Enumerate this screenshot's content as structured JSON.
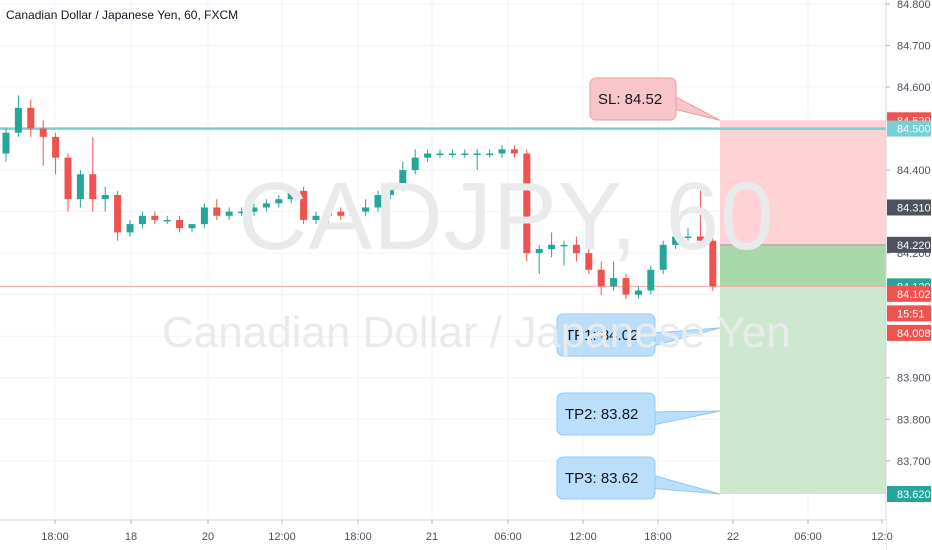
{
  "header": {
    "title": "Canadian Dollar / Japanese Yen, 60, FXCM"
  },
  "watermark": {
    "symbol": "CADJPY, 60",
    "description": "Canadian Dollar / Japanese Yen"
  },
  "colors": {
    "up": "#26a69a",
    "down": "#ef5350",
    "sl_fill": "#ffcdd2",
    "tp_fill": "#c8e6c9",
    "tp_strong": "#a5d6a7",
    "level_line": "#79cfd3",
    "current_line": "#f4a6a3"
  },
  "axis": {
    "price_labels": [
      "84.800",
      "84.700",
      "84.600",
      "84.400",
      "84.200",
      "83.900",
      "83.800",
      "83.700"
    ],
    "time_labels": [
      "18:00",
      "18",
      "20",
      "12:00",
      "18:00",
      "21",
      "06:00",
      "12:00",
      "18:00",
      "22",
      "06:00",
      "12:0"
    ]
  },
  "price_tags": [
    {
      "label": "84.520",
      "price": 84.52,
      "color": "#ef5350"
    },
    {
      "label": "84.500",
      "price": 84.5,
      "color": "#79cfd3",
      "text_color": "#131722"
    },
    {
      "label": "84.310",
      "price": 84.31,
      "color": "#4c525e"
    },
    {
      "label": "84.220",
      "price": 84.22,
      "color": "#4c525e"
    },
    {
      "label": "84.120",
      "price": 84.12,
      "color": "#26a69a"
    },
    {
      "label": "84.102",
      "price": 84.102,
      "color": "#ef5350"
    },
    {
      "label": "15:51",
      "price": 84.055,
      "color": "#ef5350"
    },
    {
      "label": "84.008",
      "price": 84.008,
      "color": "#ef5350"
    },
    {
      "label": "83.620",
      "price": 83.62,
      "color": "#26a69a"
    }
  ],
  "callouts": [
    {
      "text": "SL: 84.52",
      "type": "sl",
      "price": 84.52
    },
    {
      "text": "TP1: 84.02",
      "type": "tp",
      "price": 84.02
    },
    {
      "text": "TP2: 83.82",
      "type": "tp",
      "price": 83.82
    },
    {
      "text": "TP3: 83.62",
      "type": "tp",
      "price": 83.62
    }
  ],
  "chart_data": {
    "type": "candlestick",
    "symbol": "CADJPY",
    "interval": "60",
    "ylim": [
      83.57,
      84.82
    ],
    "levels": {
      "entry": 84.22,
      "stop_loss": 84.52,
      "take_profit_1": 84.02,
      "take_profit_2": 83.82,
      "take_profit_3": 83.62,
      "current": 84.12,
      "horizontal_line": 84.5
    },
    "candles": [
      {
        "o": 84.44,
        "h": 84.5,
        "l": 84.42,
        "c": 84.49
      },
      {
        "o": 84.49,
        "h": 84.58,
        "l": 84.48,
        "c": 84.55
      },
      {
        "o": 84.55,
        "h": 84.57,
        "l": 84.48,
        "c": 84.5
      },
      {
        "o": 84.5,
        "h": 84.52,
        "l": 84.41,
        "c": 84.48
      },
      {
        "o": 84.48,
        "h": 84.49,
        "l": 84.39,
        "c": 84.43
      },
      {
        "o": 84.43,
        "h": 84.44,
        "l": 84.3,
        "c": 84.33
      },
      {
        "o": 84.33,
        "h": 84.4,
        "l": 84.31,
        "c": 84.39
      },
      {
        "o": 84.39,
        "h": 84.48,
        "l": 84.3,
        "c": 84.33
      },
      {
        "o": 84.33,
        "h": 84.36,
        "l": 84.3,
        "c": 84.34
      },
      {
        "o": 84.34,
        "h": 84.35,
        "l": 84.23,
        "c": 84.25
      },
      {
        "o": 84.25,
        "h": 84.28,
        "l": 84.24,
        "c": 84.27
      },
      {
        "o": 84.27,
        "h": 84.3,
        "l": 84.26,
        "c": 84.29
      },
      {
        "o": 84.29,
        "h": 84.3,
        "l": 84.27,
        "c": 84.28
      },
      {
        "o": 84.28,
        "h": 84.29,
        "l": 84.27,
        "c": 84.28
      },
      {
        "o": 84.28,
        "h": 84.29,
        "l": 84.25,
        "c": 84.26
      },
      {
        "o": 84.26,
        "h": 84.27,
        "l": 84.25,
        "c": 84.27
      },
      {
        "o": 84.27,
        "h": 84.32,
        "l": 84.26,
        "c": 84.31
      },
      {
        "o": 84.31,
        "h": 84.33,
        "l": 84.28,
        "c": 84.29
      },
      {
        "o": 84.29,
        "h": 84.31,
        "l": 84.28,
        "c": 84.3
      },
      {
        "o": 84.3,
        "h": 84.31,
        "l": 84.29,
        "c": 84.3
      },
      {
        "o": 84.3,
        "h": 84.32,
        "l": 84.29,
        "c": 84.31
      },
      {
        "o": 84.31,
        "h": 84.33,
        "l": 84.3,
        "c": 84.32
      },
      {
        "o": 84.32,
        "h": 84.34,
        "l": 84.31,
        "c": 84.33
      },
      {
        "o": 84.33,
        "h": 84.36,
        "l": 84.32,
        "c": 84.35
      },
      {
        "o": 84.35,
        "h": 84.36,
        "l": 84.27,
        "c": 84.28
      },
      {
        "o": 84.28,
        "h": 84.3,
        "l": 84.27,
        "c": 84.29
      },
      {
        "o": 84.29,
        "h": 84.31,
        "l": 84.27,
        "c": 84.3
      },
      {
        "o": 84.3,
        "h": 84.31,
        "l": 84.28,
        "c": 84.29
      },
      {
        "o": 84.29,
        "h": 84.31,
        "l": 84.28,
        "c": 84.3
      },
      {
        "o": 84.3,
        "h": 84.33,
        "l": 84.29,
        "c": 84.31
      },
      {
        "o": 84.31,
        "h": 84.35,
        "l": 84.3,
        "c": 84.34
      },
      {
        "o": 84.34,
        "h": 84.37,
        "l": 84.33,
        "c": 84.36
      },
      {
        "o": 84.36,
        "h": 84.42,
        "l": 84.35,
        "c": 84.4
      },
      {
        "o": 84.4,
        "h": 84.45,
        "l": 84.39,
        "c": 84.43
      },
      {
        "o": 84.43,
        "h": 84.45,
        "l": 84.42,
        "c": 84.44
      },
      {
        "o": 84.44,
        "h": 84.45,
        "l": 84.43,
        "c": 84.44
      },
      {
        "o": 84.44,
        "h": 84.45,
        "l": 84.43,
        "c": 84.44
      },
      {
        "o": 84.44,
        "h": 84.45,
        "l": 84.43,
        "c": 84.44
      },
      {
        "o": 84.44,
        "h": 84.45,
        "l": 84.4,
        "c": 84.44
      },
      {
        "o": 84.44,
        "h": 84.45,
        "l": 84.43,
        "c": 84.44
      },
      {
        "o": 84.44,
        "h": 84.46,
        "l": 84.43,
        "c": 84.45
      },
      {
        "o": 84.45,
        "h": 84.46,
        "l": 84.43,
        "c": 84.44
      },
      {
        "o": 84.44,
        "h": 84.45,
        "l": 84.18,
        "c": 84.2
      },
      {
        "o": 84.2,
        "h": 84.22,
        "l": 84.15,
        "c": 84.21
      },
      {
        "o": 84.21,
        "h": 84.25,
        "l": 84.19,
        "c": 84.22
      },
      {
        "o": 84.22,
        "h": 84.23,
        "l": 84.17,
        "c": 84.22
      },
      {
        "o": 84.22,
        "h": 84.24,
        "l": 84.18,
        "c": 84.2
      },
      {
        "o": 84.2,
        "h": 84.22,
        "l": 84.15,
        "c": 84.16
      },
      {
        "o": 84.16,
        "h": 84.18,
        "l": 84.1,
        "c": 84.12
      },
      {
        "o": 84.12,
        "h": 84.18,
        "l": 84.11,
        "c": 84.14
      },
      {
        "o": 84.14,
        "h": 84.15,
        "l": 84.09,
        "c": 84.1
      },
      {
        "o": 84.1,
        "h": 84.12,
        "l": 84.09,
        "c": 84.11
      },
      {
        "o": 84.11,
        "h": 84.17,
        "l": 84.1,
        "c": 84.16
      },
      {
        "o": 84.16,
        "h": 84.23,
        "l": 84.15,
        "c": 84.22
      },
      {
        "o": 84.22,
        "h": 84.25,
        "l": 84.21,
        "c": 84.24
      },
      {
        "o": 84.24,
        "h": 84.26,
        "l": 84.23,
        "c": 84.24
      },
      {
        "o": 84.24,
        "h": 84.36,
        "l": 84.22,
        "c": 84.23
      },
      {
        "o": 84.23,
        "h": 84.26,
        "l": 84.11,
        "c": 84.12
      }
    ]
  }
}
